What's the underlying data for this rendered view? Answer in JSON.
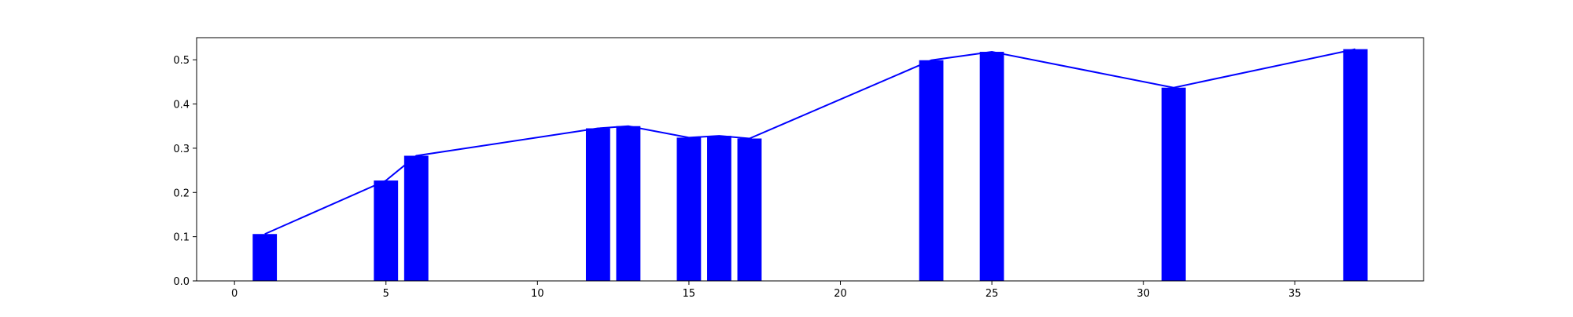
{
  "chart_data": {
    "type": "bar",
    "title": "",
    "xlabel": "",
    "ylabel": "",
    "xlim": [
      -1.25,
      39.25
    ],
    "ylim": [
      0.0,
      0.55
    ],
    "x_ticks": [
      0,
      5,
      10,
      15,
      20,
      25,
      30,
      35
    ],
    "y_ticks": [
      0.0,
      0.1,
      0.2,
      0.3,
      0.4,
      0.5
    ],
    "x_tick_labels": [
      "0",
      "5",
      "10",
      "15",
      "20",
      "25",
      "30",
      "35"
    ],
    "y_tick_labels": [
      "0.0",
      "0.1",
      "0.2",
      "0.3",
      "0.4",
      "0.5"
    ],
    "bar_width": 0.8,
    "grid": false,
    "series": [
      {
        "type": "bar",
        "color": "#0000ff",
        "x": [
          1,
          5,
          6,
          12,
          13,
          15,
          16,
          17,
          23,
          25,
          31,
          37
        ],
        "values": [
          0.106,
          0.227,
          0.283,
          0.345,
          0.35,
          0.324,
          0.328,
          0.322,
          0.499,
          0.518,
          0.437,
          0.524
        ]
      },
      {
        "type": "line",
        "color": "#0000ff",
        "x": [
          1,
          5,
          6,
          12,
          13,
          15,
          16,
          17,
          23,
          25,
          31,
          37
        ],
        "values": [
          0.106,
          0.227,
          0.283,
          0.345,
          0.35,
          0.324,
          0.328,
          0.322,
          0.499,
          0.518,
          0.437,
          0.524
        ]
      }
    ]
  }
}
